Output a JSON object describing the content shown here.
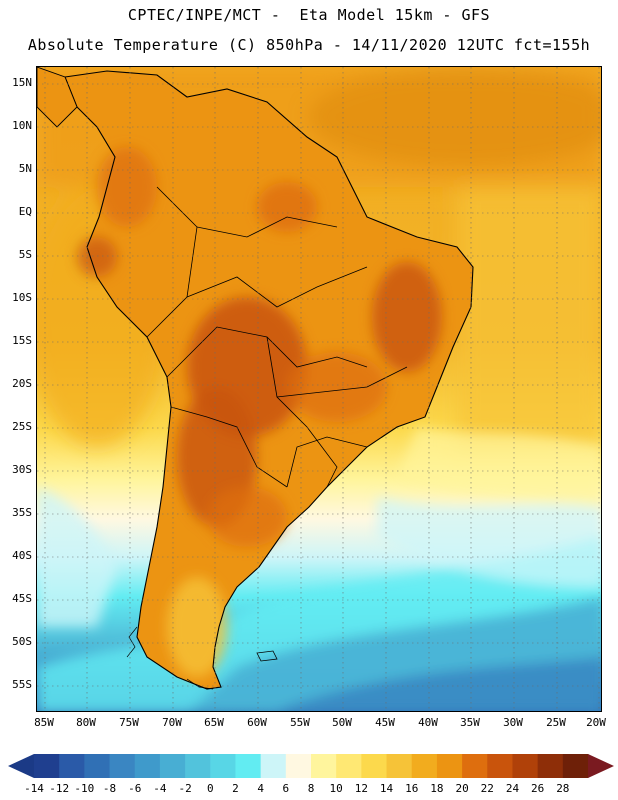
{
  "header": {
    "title_line1": "CPTEC/INPE/MCT -  Eta Model 15km - GFS",
    "title_line2": "Absolute Temperature (C) 850hPa - 14/11/2020 12UTC fct=155h"
  },
  "axes": {
    "latitude_labels": [
      "15N",
      "10N",
      "5N",
      "EQ",
      "5S",
      "10S",
      "15S",
      "20S",
      "25S",
      "30S",
      "35S",
      "40S",
      "45S",
      "50S",
      "55S"
    ],
    "longitude_labels": [
      "85W",
      "80W",
      "75W",
      "70W",
      "65W",
      "60W",
      "55W",
      "50W",
      "45W",
      "40W",
      "35W",
      "30W",
      "25W",
      "20W"
    ]
  },
  "colorbar": {
    "labels": [
      "-14",
      "-12",
      "-10",
      "-8",
      "-6",
      "-4",
      "-2",
      "0",
      "2",
      "4",
      "6",
      "8",
      "10",
      "12",
      "14",
      "16",
      "18",
      "20",
      "22",
      "24",
      "26",
      "28"
    ],
    "colors": [
      "#1f3f8f",
      "#2a5aa8",
      "#3070b5",
      "#3a86c2",
      "#3f9acb",
      "#48aed3",
      "#52c3dc",
      "#58d6e6",
      "#62ecf2",
      "#cdf5f8",
      "#fff8e1",
      "#fff59d",
      "#ffe873",
      "#fcd94c",
      "#f6c338",
      "#f2ac1e",
      "#ec9412",
      "#de6e0e",
      "#c9540c",
      "#b04109",
      "#8e2e08",
      "#6e2008"
    ],
    "under_color": "#1b3a86",
    "over_color": "#7a1a20"
  },
  "legend_colors": {
    "land_border": "#000000",
    "grid": "#6b6b6b"
  }
}
